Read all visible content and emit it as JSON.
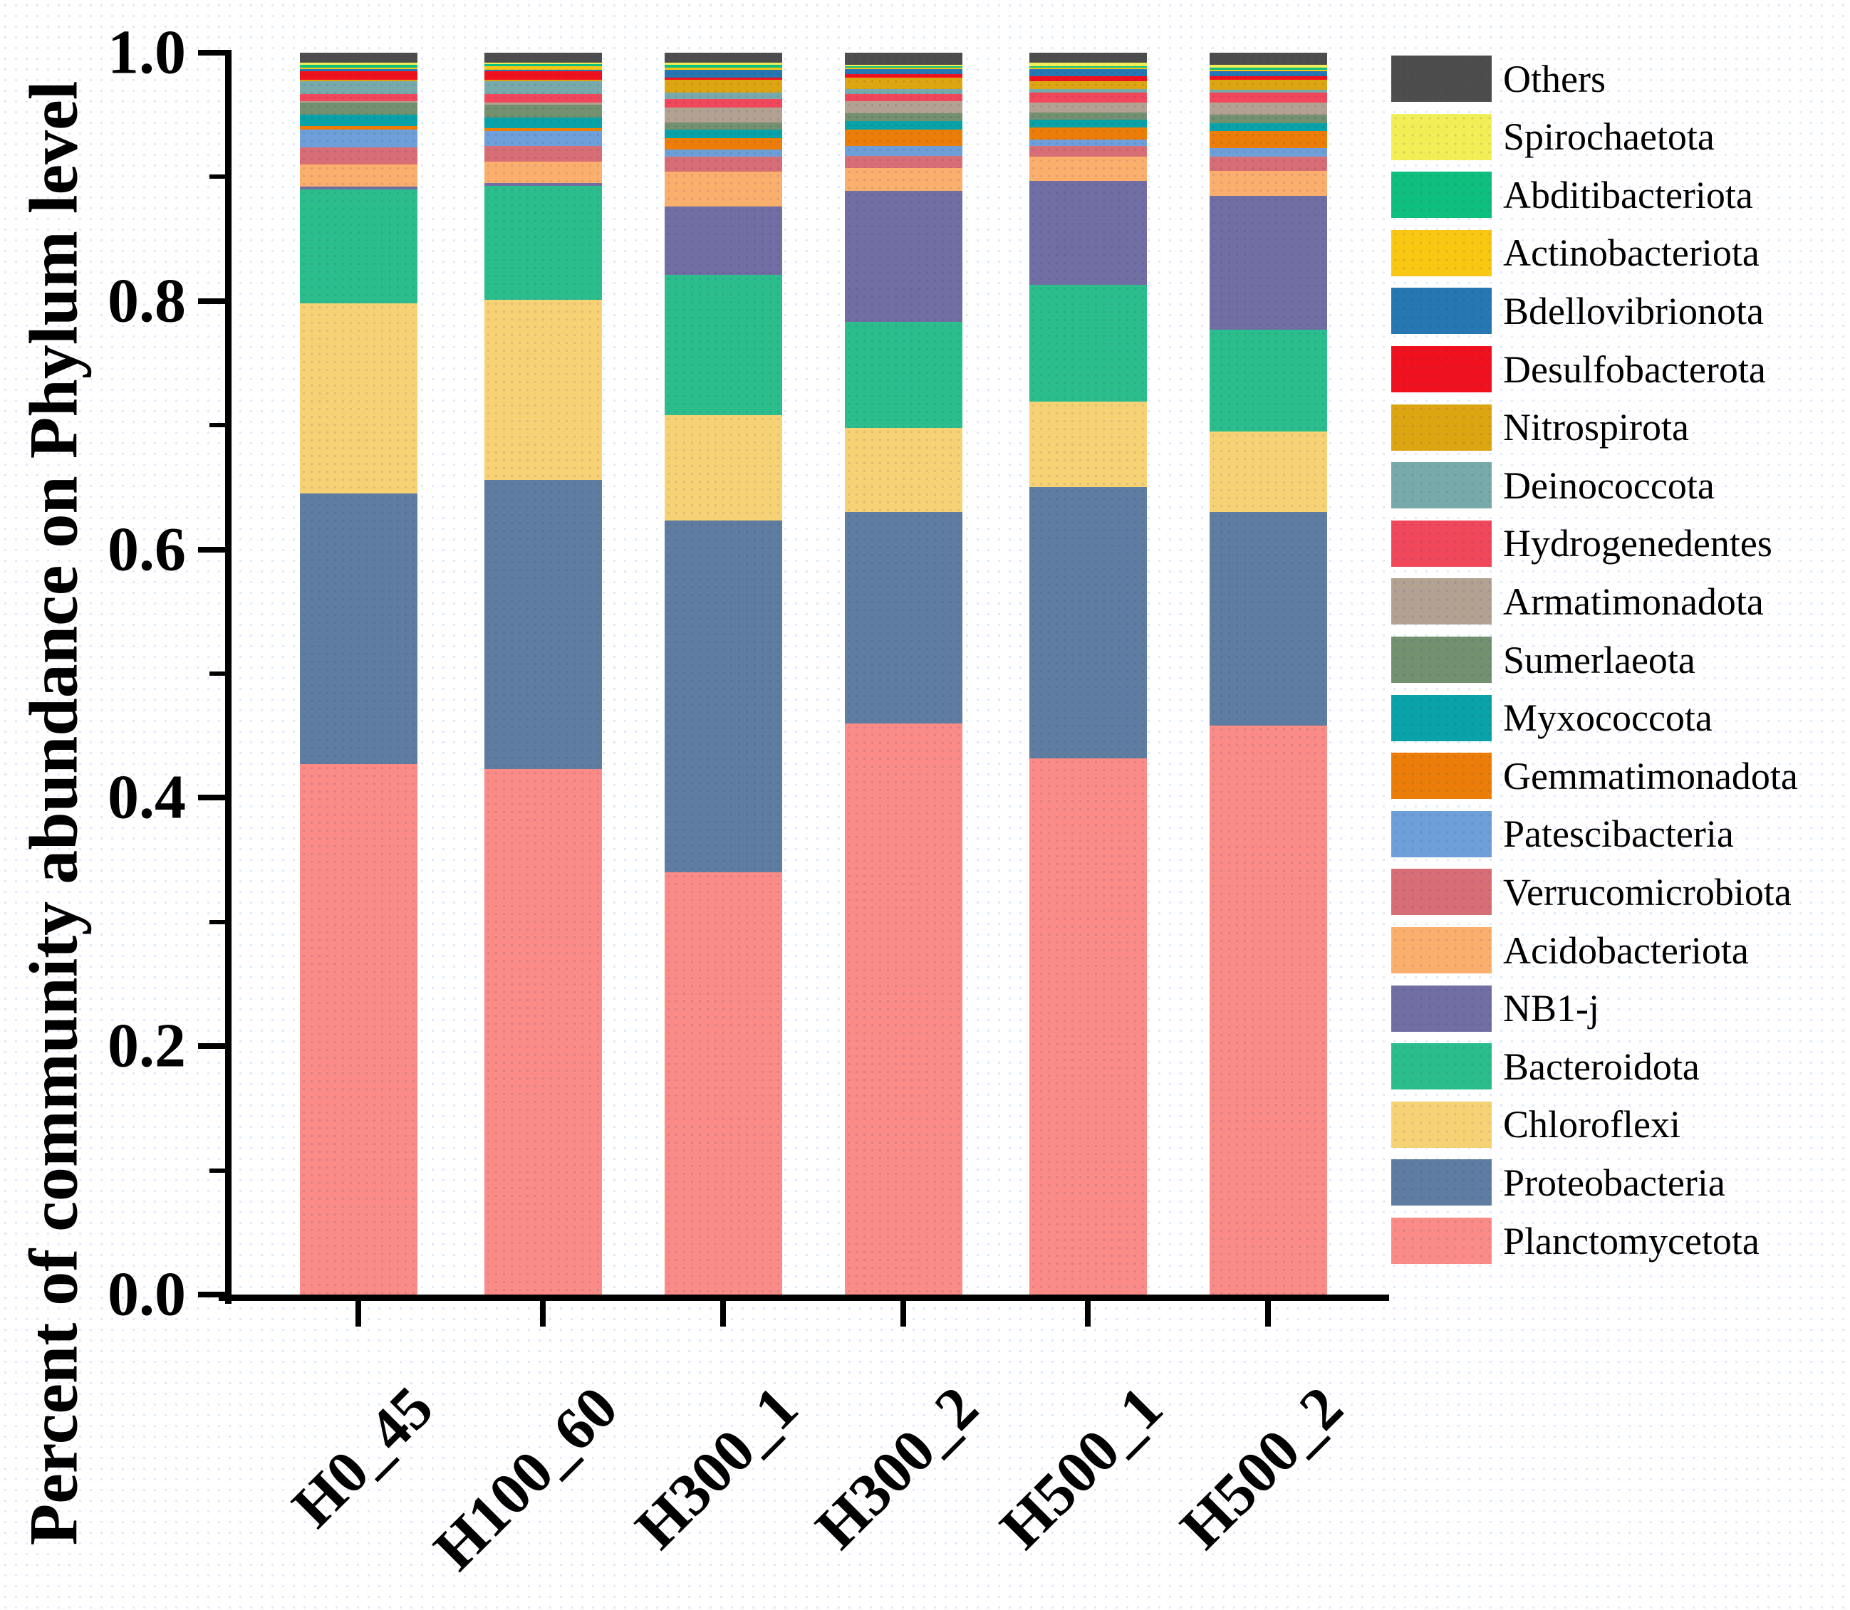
{
  "chart_data": {
    "type": "bar",
    "stacked": true,
    "title": "",
    "xlabel": "",
    "ylabel": "Percent of community abundance on Phylum level",
    "ylim": [
      0.0,
      1.0
    ],
    "grid": false,
    "legend_position": "right",
    "ytick_values": [
      1.0,
      0.8,
      0.6,
      0.4,
      0.2,
      0.0
    ],
    "ytick_labels": [
      "1.0",
      "0.8",
      "0.6",
      "0.4",
      "0.2",
      "0.0"
    ],
    "yminor_tick_values": [
      0.9,
      0.7,
      0.5,
      0.3,
      0.1
    ],
    "categories": [
      "H0_45",
      "H100_60",
      "H300_1",
      "H300_2",
      "H500_1",
      "H500_2"
    ],
    "series": [
      {
        "name": "Others",
        "color": "#4d4d4d",
        "values": [
          0.008,
          0.008,
          0.008,
          0.01,
          0.008,
          0.01
        ]
      },
      {
        "name": "Spirochaetota",
        "color": "#f2ee55",
        "values": [
          0.002,
          0.001,
          0.002,
          0.001,
          0.003,
          0.002
        ]
      },
      {
        "name": "Abditibacteriota",
        "color": "#0fbf7d",
        "values": [
          0.002,
          0.002,
          0.002,
          0.001,
          0.001,
          0.002
        ]
      },
      {
        "name": "Actinobacteriota",
        "color": "#f9c712",
        "values": [
          0.001,
          0.003,
          0.002,
          0.001,
          0.001,
          0.001
        ]
      },
      {
        "name": "Bdellovibrionota",
        "color": "#2677b2",
        "values": [
          0.002,
          0.001,
          0.006,
          0.004,
          0.006,
          0.004
        ]
      },
      {
        "name": "Desulfobacterota",
        "color": "#f0111e",
        "values": [
          0.007,
          0.007,
          0.002,
          0.003,
          0.004,
          0.003
        ]
      },
      {
        "name": "Nitrospirota",
        "color": "#dda512",
        "values": [
          0.001,
          0.001,
          0.01,
          0.009,
          0.006,
          0.008
        ]
      },
      {
        "name": "Deinococcota",
        "color": "#79aaab",
        "values": [
          0.01,
          0.01,
          0.005,
          0.004,
          0.003,
          0.002
        ]
      },
      {
        "name": "Hydrogenedentes",
        "color": "#f1475a",
        "values": [
          0.006,
          0.007,
          0.007,
          0.006,
          0.008,
          0.008
        ]
      },
      {
        "name": "Armatimonadota",
        "color": "#b3a192",
        "values": [
          0.001,
          0.002,
          0.012,
          0.01,
          0.008,
          0.01
        ]
      },
      {
        "name": "Sumerlaeota",
        "color": "#73906f",
        "values": [
          0.01,
          0.01,
          0.006,
          0.006,
          0.006,
          0.007
        ]
      },
      {
        "name": "Myxococcota",
        "color": "#09a2a8",
        "values": [
          0.009,
          0.009,
          0.007,
          0.007,
          0.006,
          0.006
        ]
      },
      {
        "name": "Gemmatimonadota",
        "color": "#eb7d08",
        "values": [
          0.003,
          0.002,
          0.009,
          0.013,
          0.01,
          0.014
        ]
      },
      {
        "name": "Patescibacteria",
        "color": "#6f9fd8",
        "values": [
          0.014,
          0.012,
          0.006,
          0.008,
          0.005,
          0.007
        ]
      },
      {
        "name": "Verrucomicrobiota",
        "color": "#d76d75",
        "values": [
          0.014,
          0.013,
          0.012,
          0.01,
          0.009,
          0.011
        ]
      },
      {
        "name": "Acidobacteriota",
        "color": "#fab06c",
        "values": [
          0.018,
          0.017,
          0.028,
          0.018,
          0.019,
          0.02
        ]
      },
      {
        "name": "NB1-j",
        "color": "#716ea3",
        "values": [
          0.002,
          0.002,
          0.055,
          0.106,
          0.084,
          0.108
        ]
      },
      {
        "name": "Bacteroidota",
        "color": "#2cbd8d",
        "values": [
          0.092,
          0.092,
          0.113,
          0.085,
          0.094,
          0.082
        ]
      },
      {
        "name": "Chloroflexi",
        "color": "#f7d275",
        "values": [
          0.153,
          0.145,
          0.085,
          0.068,
          0.069,
          0.065
        ]
      },
      {
        "name": "Proteobacteria",
        "color": "#5e7da0",
        "values": [
          0.218,
          0.233,
          0.283,
          0.17,
          0.218,
          0.172
        ]
      },
      {
        "name": "Planctomycetota",
        "color": "#fa8b86",
        "values": [
          0.427,
          0.423,
          0.34,
          0.46,
          0.432,
          0.458
        ]
      }
    ]
  },
  "layout_note": "legend order is top-to-bottom; bars stack in same order with Planctomycetota at the bottom"
}
